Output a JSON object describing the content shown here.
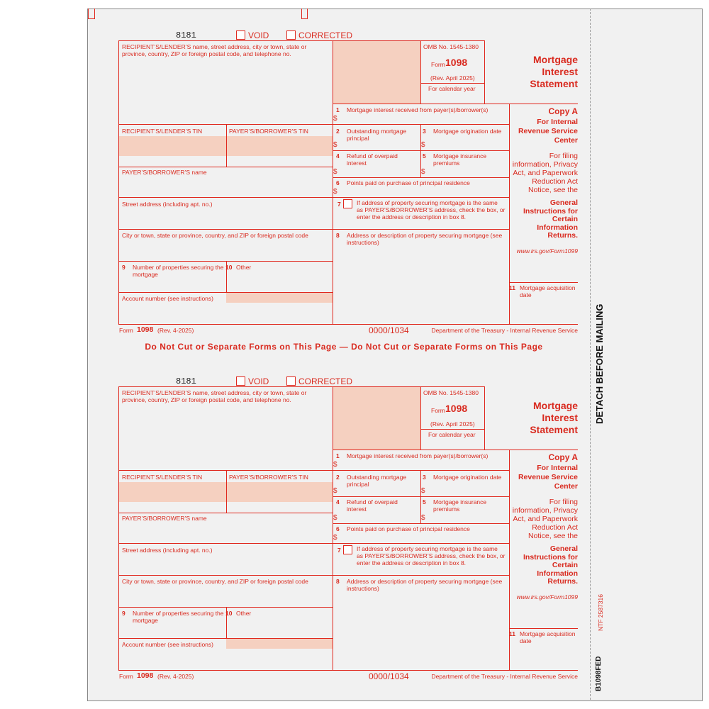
{
  "form": {
    "code": "8181",
    "void": "VOID",
    "corrected": "CORRECTED",
    "recipient_name": "RECIPIENT’S/LENDER’S name, street address, city or town, state or province, country, ZIP or foreign postal code, and telephone no.",
    "omb": "OMB No. 1545-1380",
    "form_word": "Form",
    "form_number": "1098",
    "rev": "(Rev. April 2025)",
    "calendar_year": "For calendar year",
    "title": "Mortgage Interest Statement",
    "dollar": "$",
    "box1": {
      "num": "1",
      "label": "Mortgage interest received from payer(s)/borrower(s)"
    },
    "recipient_tin": "RECIPIENT’S/LENDER’S TIN",
    "payer_tin": "PAYER’S/BORROWER’S TIN",
    "box2": {
      "num": "2",
      "label": "Outstanding mortgage principal"
    },
    "box3": {
      "num": "3",
      "label": "Mortgage origination date"
    },
    "box4": {
      "num": "4",
      "label": "Refund of overpaid interest"
    },
    "box5": {
      "num": "5",
      "label": "Mortgage insurance premiums"
    },
    "payer_name": "PAYER’S/BORROWER’S name",
    "box6": {
      "num": "6",
      "label": "Points paid on purchase of principal residence"
    },
    "street": "Street address (including apt. no.)",
    "box7": {
      "num": "7",
      "label": "If address of property securing mortgage is the same as PAYER’S/BORROWER’S address, check the box, or enter the address or description in box 8."
    },
    "city": "City or town, state or province, country, and ZIP or foreign postal code",
    "box8": {
      "num": "8",
      "label": "Address or description of property securing mortgage (see instructions)"
    },
    "box9": {
      "num": "9",
      "label": "Number of properties securing the mortgage"
    },
    "box10": {
      "num": "10",
      "label": "Other"
    },
    "account": "Account number (see instructions)",
    "box11": {
      "num": "11",
      "label": "Mortgage acquisition date"
    },
    "copy": "Copy A",
    "copy_for": "For Internal Revenue Service Center",
    "copy_note": "For filing information, Privacy Act, and Paperwork Reduction Act Notice, see the",
    "copy_bold": "General Instructions for Certain Information Returns.",
    "url": "www.irs.gov/Form1099",
    "rev_short": "(Rev. 4-2025)",
    "catalog": "0000/1034",
    "dept": "Department of the Treasury - Internal Revenue Service"
  },
  "separator": "Do Not Cut or Separate Forms on This Page — Do Not Cut or Separate Forms on This Page",
  "detach": "DETACH BEFORE MAILING",
  "ntf": "NTF 2587316",
  "side_code": "B1098FED"
}
